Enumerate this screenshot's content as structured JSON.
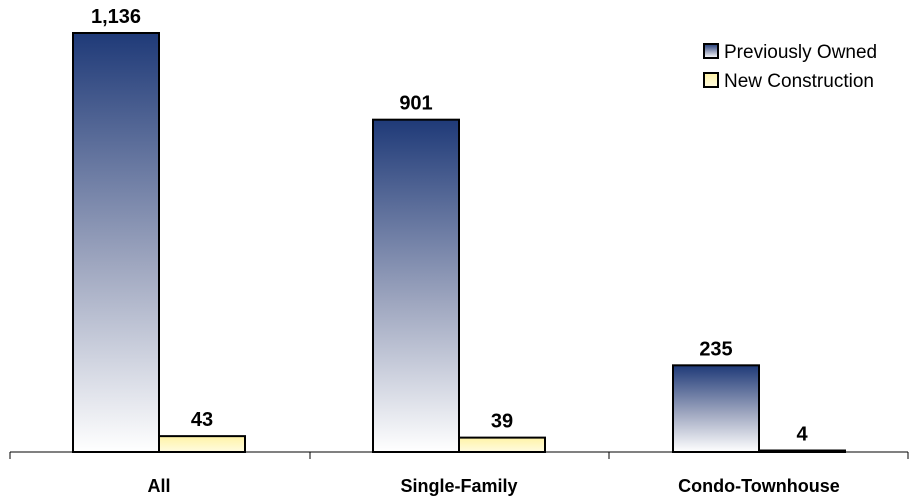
{
  "chart_data": {
    "type": "bar",
    "categories": [
      "All",
      "Single-Family",
      "Condo-Townhouse"
    ],
    "series": [
      {
        "name": "Previously Owned",
        "values": [
          1136,
          901,
          235
        ]
      },
      {
        "name": "New Construction",
        "values": [
          43,
          39,
          4
        ]
      }
    ],
    "value_labels": [
      [
        "1,136",
        "901",
        "235"
      ],
      [
        "43",
        "39",
        "4"
      ]
    ],
    "title": "",
    "xlabel": "",
    "ylabel": "",
    "ylim": [
      0,
      1136
    ],
    "grid": false,
    "legend_position": "top-right",
    "colors": {
      "previously_owned_top": "#1f3a78",
      "previously_owned_bottom": "#ffffff",
      "new_construction_top": "#fff3a6",
      "new_construction_bottom": "#fffbe0",
      "outline": "#000000"
    }
  }
}
